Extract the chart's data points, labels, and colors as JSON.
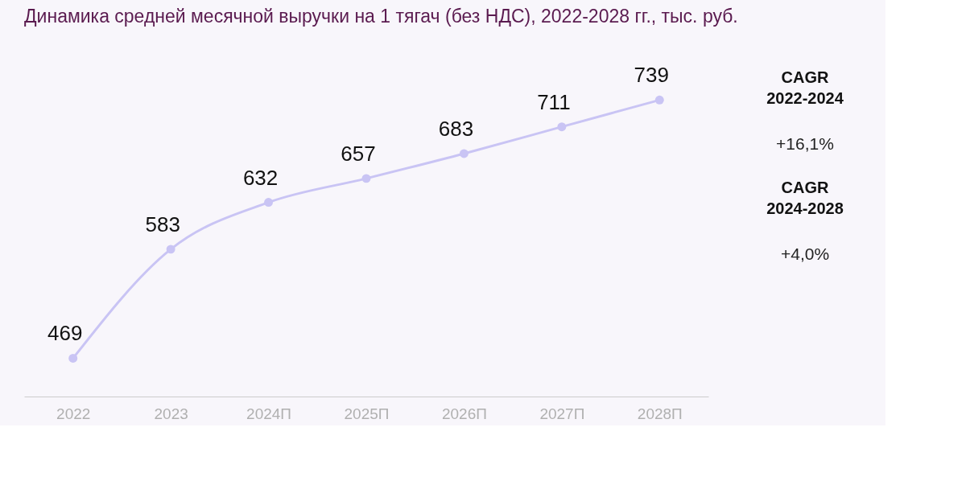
{
  "chart_data": {
    "type": "line",
    "title": "Динамика средней месячной выручки на 1 тягач (без НДС), 2022-2028 гг., тыс. руб.",
    "categories": [
      "2022",
      "2023",
      "2024П",
      "2025П",
      "2026П",
      "2027П",
      "2028П"
    ],
    "series": [
      {
        "color": "#c9c4f4",
        "values": [
          469,
          583,
          632,
          657,
          683,
          711,
          739
        ]
      }
    ],
    "data_labels": true,
    "marker": "circle",
    "line_style": "solid",
    "grid": false,
    "tick_labels": "x",
    "annotations": [
      "CAGR 2022-2024",
      "+16,1%",
      "CAGR 2024-2028",
      "+4,0%"
    ]
  }
}
